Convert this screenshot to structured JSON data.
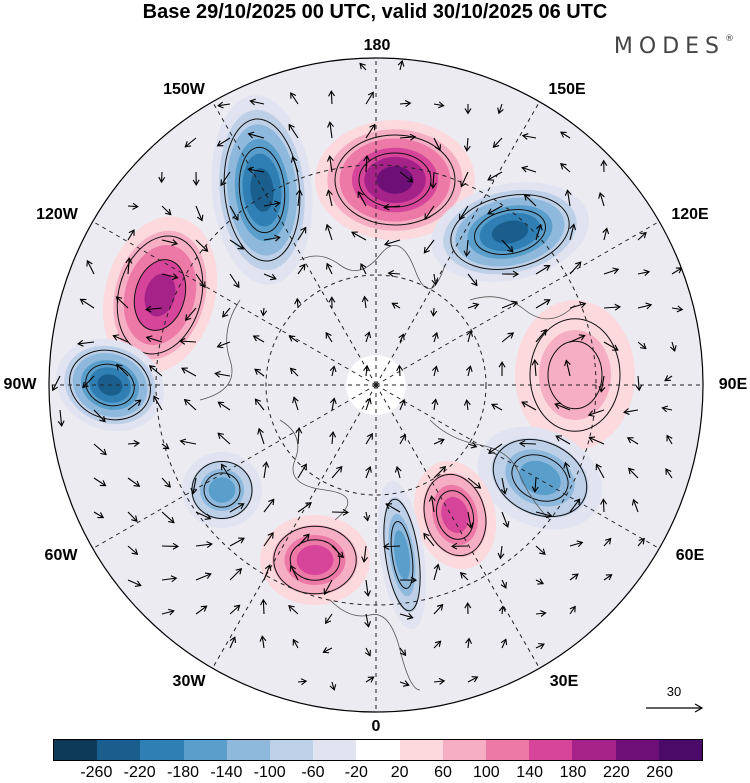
{
  "header": {
    "title": "Base 29/10/2025 00 UTC, valid 30/10/2025 06 UTC",
    "brand": "MODES",
    "brand_mark": "®"
  },
  "map": {
    "projection": "north-polar-stereographic",
    "longitude_labels": {
      "top": "180",
      "bottom": "0",
      "left": "90W",
      "right": "90E",
      "upper_left_1": "150W",
      "upper_left_2": "120W",
      "lower_left_1": "60W",
      "lower_left_2": "30W",
      "upper_right_1": "150E",
      "upper_right_2": "120E",
      "lower_right_1": "60E",
      "lower_right_2": "30E"
    },
    "anomaly_centers": [
      {
        "sign": "negative",
        "strength": -250,
        "location": "north of Alaska, 155W"
      },
      {
        "sign": "positive",
        "strength": 240,
        "location": "Chukchi/East Siberian Sea, 175E"
      },
      {
        "sign": "negative",
        "strength": -250,
        "location": "Laptev/East Siberian, 140E"
      },
      {
        "sign": "positive",
        "strength": 200,
        "location": "Canadian Arctic, 115W"
      },
      {
        "sign": "negative",
        "strength": -230,
        "location": "Hudson Bay, 85W"
      },
      {
        "sign": "positive",
        "strength": 100,
        "location": "central Siberia, 95E"
      },
      {
        "sign": "negative",
        "strength": -150,
        "location": "Kara/Urals, 55E"
      },
      {
        "sign": "positive",
        "strength": 180,
        "location": "Barents/Scandinavia, 20E"
      },
      {
        "sign": "negative",
        "strength": -180,
        "location": "Norwegian Sea, 0"
      },
      {
        "sign": "positive",
        "strength": 170,
        "location": "North Atlantic, 25W"
      },
      {
        "sign": "negative",
        "strength": -150,
        "location": "Labrador Sea, 50W"
      }
    ],
    "vector_reference": {
      "value": "30"
    }
  },
  "colorbar": {
    "ticks": [
      "-260",
      "-220",
      "-180",
      "-140",
      "-100",
      "-60",
      "-20",
      "20",
      "60",
      "100",
      "140",
      "180",
      "220",
      "260"
    ],
    "colors": [
      "#0e3a5a",
      "#1a5e8e",
      "#2f7fb4",
      "#5a9ecb",
      "#8fb9dc",
      "#bdd0e8",
      "#e1e3f0",
      "#ffffff",
      "#fbd9dd",
      "#f5aec3",
      "#ec79a6",
      "#d7459a",
      "#a52388",
      "#6e0f78",
      "#4b0a67"
    ]
  }
}
